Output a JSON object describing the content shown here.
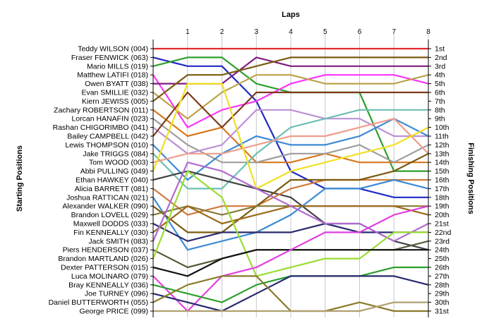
{
  "chart_data": {
    "type": "line",
    "title": "Laps",
    "ylabel_left": "Starting Positions",
    "ylabel_right": "Finishing Positions",
    "x": [
      0,
      1,
      2,
      3,
      4,
      5,
      6,
      7,
      8
    ],
    "x_tick_labels": [
      "1",
      "2",
      "3",
      "4",
      "5",
      "6",
      "7",
      "8"
    ],
    "start_labels": [
      "Teddy WILSON (004)",
      "Fraser FENWICK (063)",
      "Mario MILLS (019)",
      "Matthew LATIFI (018)",
      "Owen BYATT (038)",
      "Evan SMILLIE (032)",
      "Kiern JEWISS (005)",
      "Zachary ROBERTSON (011)",
      "Lorcan HANAFIN (023)",
      "Rashan CHIGORIMBO (041)",
      "Bailey CAMPBELL (042)",
      "Lewis THOMPSON (010)",
      "Jake TRIGGS (084)",
      "Tom WOOD (003)",
      "Abbi PULLING (049)",
      "Ethan HAWKEY (040)",
      "Alicia BARRETT (081)",
      "Joshua RATTICAN (021)",
      "Alexander WALKER (090)",
      "Brandon LOVELL (029)",
      "Maxwell DODDS (033)",
      "Fin KENNEALLY (030)",
      "Jack SMITH (083)",
      "Piers HENDERSON (037)",
      "Brandon MARTLAND (026)",
      "Dexter PATTERSON (015)",
      "Luca MOLINARO (079)",
      "Bray KENNEALLY (036)",
      "Joe TURNEY (096)",
      "Daniel BUTTERWORTH (055)",
      "George PRICE (099)"
    ],
    "finish_labels": [
      "1st",
      "2nd",
      "3rd",
      "4th",
      "5th",
      "6th",
      "7th",
      "8th",
      "9th",
      "10th",
      "11th",
      "12th",
      "13th",
      "14th",
      "15th",
      "16th",
      "17th",
      "18th",
      "19th",
      "20th",
      "21st",
      "22nd",
      "23rd",
      "24th",
      "25th",
      "26th",
      "27th",
      "28th",
      "29th",
      "30th",
      "31st"
    ],
    "ylim": [
      1,
      31
    ],
    "series": [
      {
        "color": "#e0282a",
        "values": [
          1,
          1,
          1,
          1,
          1,
          1,
          1,
          1,
          1
        ]
      },
      {
        "color": "#1f2bc4",
        "values": [
          2,
          3,
          3,
          7,
          15,
          17,
          17,
          18,
          18
        ]
      },
      {
        "color": "#2ca02c",
        "values": [
          3,
          2,
          2,
          5,
          6,
          6,
          6,
          15,
          15
        ]
      },
      {
        "color": "#ff33ff",
        "values": [
          4,
          10,
          8,
          7,
          5,
          4,
          4,
          4,
          5
        ]
      },
      {
        "color": "#7e1e7e",
        "values": [
          5,
          5,
          5,
          2,
          3,
          3,
          3,
          3,
          3
        ]
      },
      {
        "color": "#bca34a",
        "values": [
          6,
          9,
          6,
          4,
          4,
          5,
          5,
          5,
          4
        ]
      },
      {
        "color": "#7a5a10",
        "values": [
          7,
          4,
          4,
          3,
          2,
          2,
          2,
          2,
          2
        ]
      },
      {
        "color": "#d9781e",
        "values": [
          8,
          11,
          10,
          14,
          14,
          13,
          14,
          14,
          14
        ]
      },
      {
        "color": "#9e9e9e",
        "values": [
          9,
          12,
          14,
          14,
          13,
          13,
          12,
          14,
          12
        ]
      },
      {
        "color": "#bd90d6",
        "values": [
          10,
          13,
          12,
          8,
          8,
          9,
          9,
          11,
          11
        ]
      },
      {
        "color": "#7b3a1a",
        "values": [
          11,
          6,
          10,
          6,
          6,
          6,
          6,
          6,
          6
        ]
      },
      {
        "color": "#3c8ad4",
        "values": [
          12,
          16,
          13,
          11,
          12,
          12,
          11,
          9,
          11
        ]
      },
      {
        "color": "#6dbfb3",
        "values": [
          13,
          17,
          17,
          13,
          10,
          9,
          8,
          8,
          8
        ]
      },
      {
        "color": "#ef9d8c",
        "values": [
          14,
          13,
          13,
          12,
          11,
          11,
          10,
          9,
          13
        ]
      },
      {
        "color": "#f0e020",
        "values": [
          15,
          5,
          5,
          17,
          15,
          14,
          13,
          12,
          10
        ]
      },
      {
        "color": "#444444",
        "values": [
          16,
          15,
          16,
          17,
          18,
          21,
          21,
          23,
          24
        ]
      },
      {
        "color": "#d07a3a",
        "values": [
          17,
          20,
          19,
          19,
          17,
          16,
          16,
          16,
          16
        ]
      },
      {
        "color": "#3c8ad4",
        "values": [
          18,
          24,
          23,
          22,
          20,
          17,
          17,
          16,
          17
        ]
      },
      {
        "color": "#7a5a10",
        "values": [
          19,
          22,
          22,
          19,
          16,
          16,
          16,
          15,
          13
        ]
      },
      {
        "color": "#8a7a3a",
        "values": [
          20,
          19,
          20,
          19,
          19,
          19,
          19,
          19,
          19
        ]
      },
      {
        "color": "#2a2a70",
        "values": [
          21,
          23,
          22,
          22,
          22,
          21,
          22,
          22,
          22
        ]
      },
      {
        "color": "#9a6a1a",
        "values": [
          22,
          19,
          21,
          20,
          19,
          19,
          19,
          19,
          20
        ]
      },
      {
        "color": "#b06ad0",
        "values": [
          23,
          14,
          15,
          17,
          19,
          21,
          21,
          23,
          21
        ]
      },
      {
        "color": "#5a5a3a",
        "values": [
          24,
          26,
          25,
          24,
          24,
          24,
          24,
          24,
          23
        ]
      },
      {
        "color": "#99dd33",
        "values": [
          25,
          15,
          18,
          27,
          26,
          25,
          25,
          22,
          22
        ]
      },
      {
        "color": "#111111",
        "values": [
          26,
          27,
          25,
          24,
          24,
          24,
          24,
          24,
          24
        ]
      },
      {
        "color": "#e040e0",
        "values": [
          27,
          31,
          27,
          26,
          24,
          22,
          22,
          20,
          19
        ]
      },
      {
        "color": "#2ca02c",
        "values": [
          28,
          29,
          30,
          28,
          27,
          27,
          27,
          26,
          26
        ]
      },
      {
        "color": "#262a6e",
        "values": [
          29,
          30,
          31,
          29,
          27,
          27,
          27,
          27,
          28
        ]
      },
      {
        "color": "#8a7a2a",
        "values": [
          30,
          28,
          27,
          27,
          31,
          31,
          30,
          31,
          31
        ]
      },
      {
        "color": "#b0a070",
        "values": [
          31,
          31,
          31,
          31,
          31,
          31,
          31,
          30,
          30
        ]
      }
    ]
  }
}
